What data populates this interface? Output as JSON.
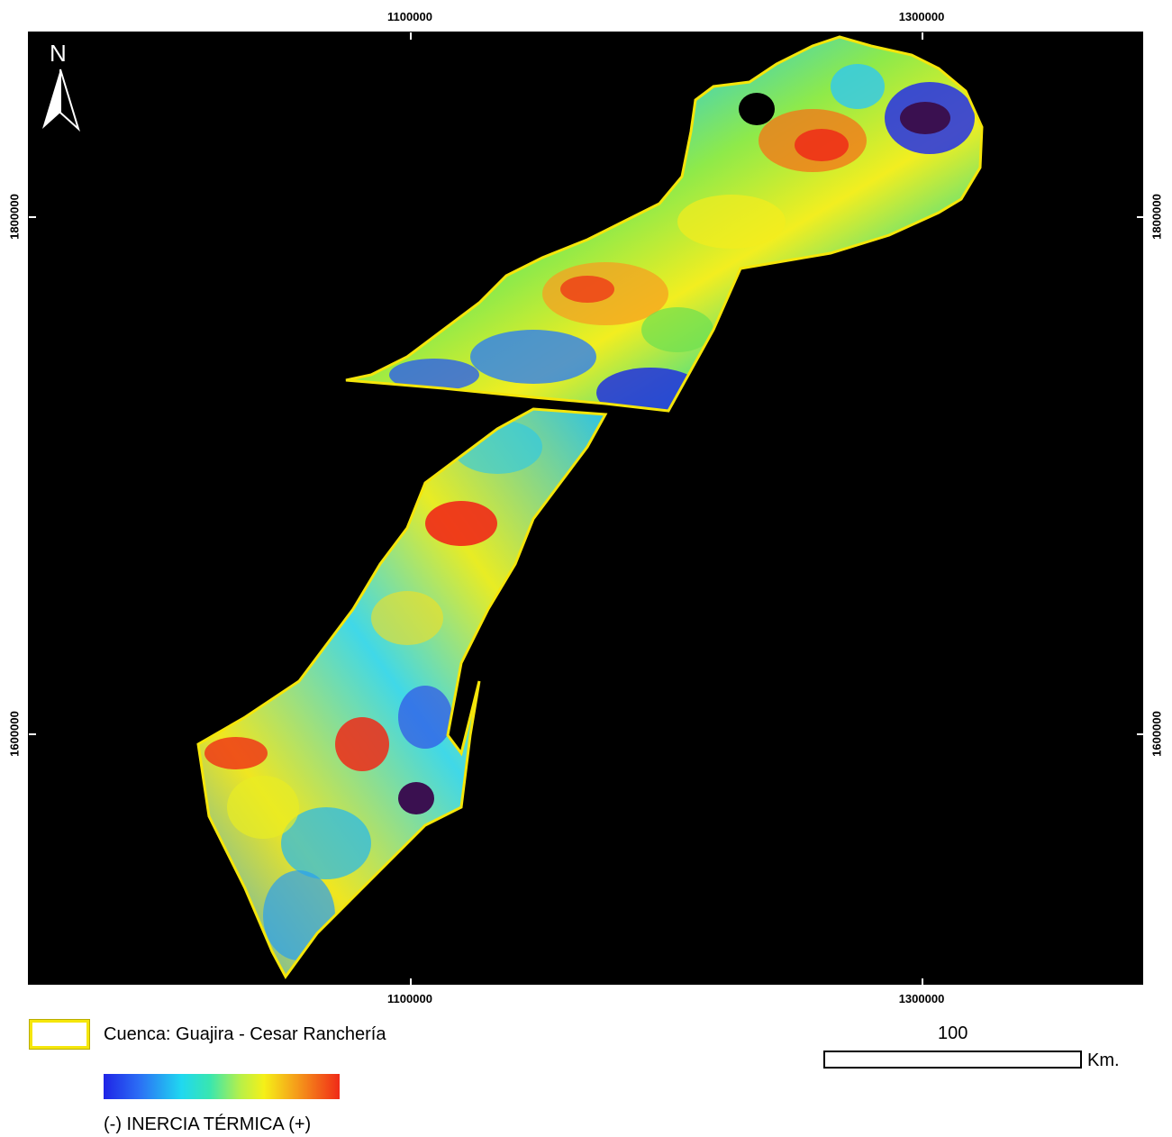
{
  "map": {
    "x_ticks": [
      "1100000",
      "1300000"
    ],
    "y_ticks": [
      "1800000",
      "1600000"
    ],
    "north_label": "N"
  },
  "legend": {
    "basin_label": "Cuenca: Guajira - Cesar Ranchería",
    "basin_outline_color": "#f5e60a",
    "ramp_label": "(-) INERCIA TÉRMICA (+)",
    "ramp_colors": [
      "#1f24e6",
      "#20d8f0",
      "#f5f018",
      "#f02a18"
    ]
  },
  "scale_bar": {
    "value": "100",
    "unit": "Km."
  }
}
